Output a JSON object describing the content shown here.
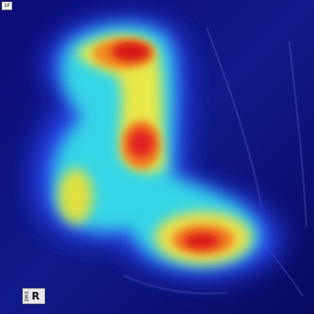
{
  "image": {
    "kind": "x-ray with heatmap overlay",
    "corner_tag": "1F",
    "marker": {
      "side_text": "DR3",
      "letter": "R"
    },
    "colors": {
      "background": "#0b0b6e",
      "low": "#1a2ad0",
      "mid_cyan": "#35d8e8",
      "mid_yellow": "#f0e040",
      "high_orange": "#f08020",
      "peak_red": "#d81818"
    }
  }
}
